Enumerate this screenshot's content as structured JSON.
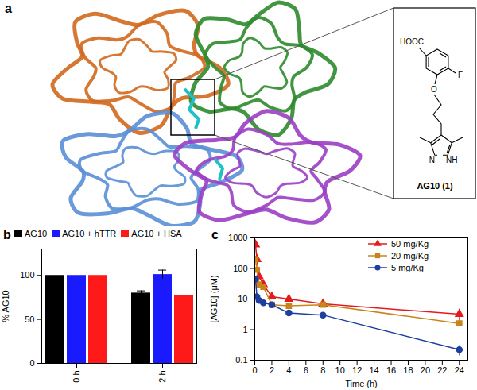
{
  "diagram": {
    "title": "a",
    "inset": {
      "label": "AG10 (1)",
      "atoms": {
        "acid": "HOOC",
        "fluorine": "F",
        "oxygen": "O",
        "nitrogen": "N",
        "nh": "NH"
      }
    }
  },
  "chart_data": [
    {
      "type": "bar",
      "title": "b",
      "categories": [
        "0 h",
        "2 h"
      ],
      "series": [
        {
          "name": "AG10",
          "color": "#000000",
          "values": [
            100,
            80
          ],
          "errors": [
            0,
            2.5
          ]
        },
        {
          "name": "AG10 + hTTR",
          "color": "#1a1aff",
          "values": [
            100,
            101
          ],
          "errors": [
            0,
            5
          ]
        },
        {
          "name": "AG10 + HSA",
          "color": "#ff1a1a",
          "values": [
            100,
            77
          ],
          "errors": [
            0,
            0.6
          ]
        }
      ],
      "y_label": "% AG10",
      "ylim": [
        0,
        130
      ],
      "yticks": [
        0,
        50,
        100
      ],
      "legend": "top"
    },
    {
      "type": "line",
      "title": "c",
      "x_label": "Time (h)",
      "y_label": "[AG10] (μM)",
      "log": "y",
      "x": [
        0.083,
        0.25,
        0.5,
        1,
        2,
        4,
        8,
        24
      ],
      "xlim": [
        0,
        25
      ],
      "xticks": [
        0,
        2,
        4,
        6,
        8,
        10,
        12,
        14,
        16,
        18,
        20,
        22,
        24
      ],
      "ylim": [
        0.1,
        1000
      ],
      "yticks": [
        0.1,
        1,
        10,
        100,
        1000
      ],
      "legend": "top-right",
      "series": [
        {
          "name": "50 mg/Kg",
          "color": "#e41a1c",
          "marker": "triangle",
          "values": [
            600,
            200,
            55,
            30,
            12,
            10,
            7,
            3.2
          ],
          "errors": [
            150,
            40,
            10,
            5,
            2,
            1.5,
            1.5,
            1.5
          ]
        },
        {
          "name": "20 mg/Kg",
          "color": "#c8841b",
          "marker": "square",
          "values": [
            200,
            90,
            30,
            25,
            6.5,
            6,
            6.5,
            1.6
          ],
          "errors": [
            50,
            20,
            5,
            4,
            1,
            1,
            1,
            0.3
          ]
        },
        {
          "name": "5 mg/Kg",
          "color": "#1f3fa0",
          "marker": "circle",
          "values": [
            45,
            12,
            9,
            7.5,
            6.5,
            3.5,
            3,
            0.22
          ],
          "errors": [
            10,
            3,
            2,
            1,
            1,
            0.5,
            0.4,
            0.08
          ]
        }
      ]
    }
  ]
}
